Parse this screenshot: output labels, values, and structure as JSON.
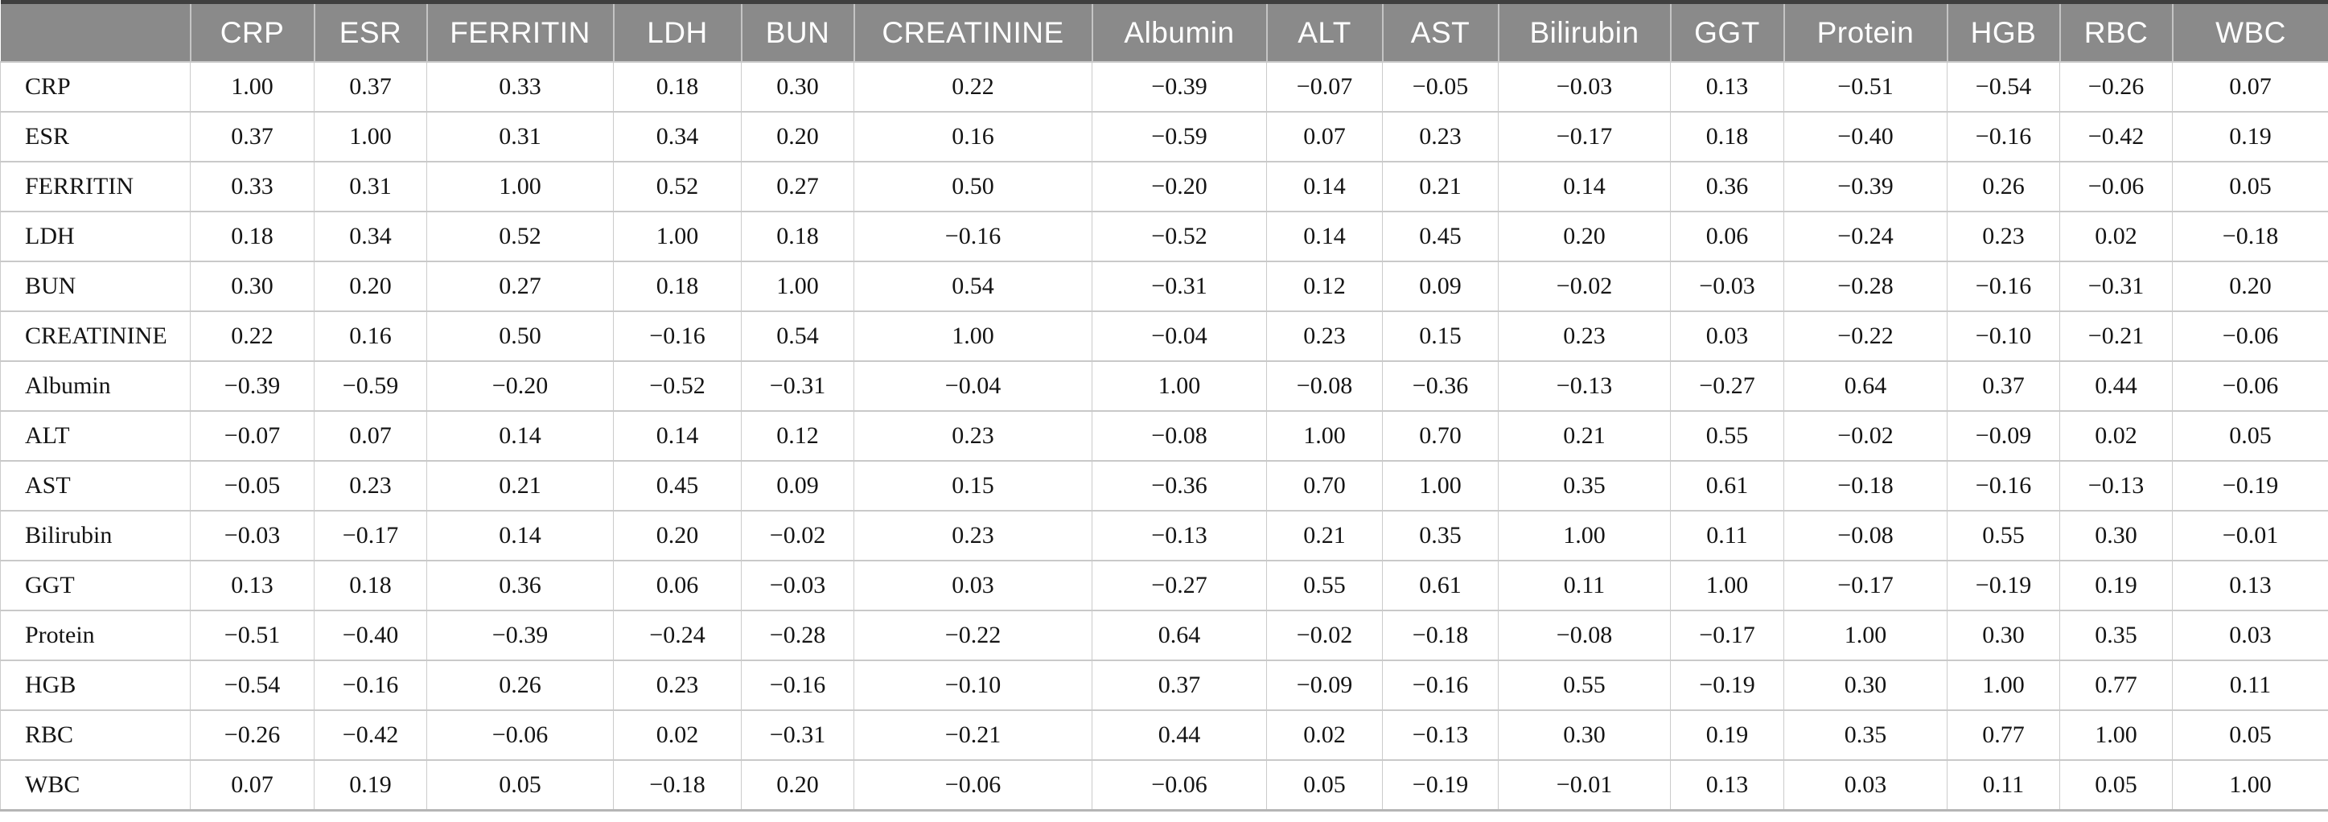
{
  "table": {
    "corner_label": "",
    "columns": [
      "CRP",
      "ESR",
      "FERRITIN",
      "LDH",
      "BUN",
      "CREATININE",
      "Albumin",
      "ALT",
      "AST",
      "Bilirubin",
      "GGT",
      "Protein",
      "HGB",
      "RBC",
      "WBC"
    ],
    "rows": [
      {
        "label": "CRP",
        "values": [
          "1.00",
          "0.37",
          "0.33",
          "0.18",
          "0.30",
          "0.22",
          "−0.39",
          "−0.07",
          "−0.05",
          "−0.03",
          "0.13",
          "−0.51",
          "−0.54",
          "−0.26",
          "0.07"
        ]
      },
      {
        "label": "ESR",
        "values": [
          "0.37",
          "1.00",
          "0.31",
          "0.34",
          "0.20",
          "0.16",
          "−0.59",
          "0.07",
          "0.23",
          "−0.17",
          "0.18",
          "−0.40",
          "−0.16",
          "−0.42",
          "0.19"
        ]
      },
      {
        "label": "FERRITIN",
        "values": [
          "0.33",
          "0.31",
          "1.00",
          "0.52",
          "0.27",
          "0.50",
          "−0.20",
          "0.14",
          "0.21",
          "0.14",
          "0.36",
          "−0.39",
          "0.26",
          "−0.06",
          "0.05"
        ]
      },
      {
        "label": "LDH",
        "values": [
          "0.18",
          "0.34",
          "0.52",
          "1.00",
          "0.18",
          "−0.16",
          "−0.52",
          "0.14",
          "0.45",
          "0.20",
          "0.06",
          "−0.24",
          "0.23",
          "0.02",
          "−0.18"
        ]
      },
      {
        "label": "BUN",
        "values": [
          "0.30",
          "0.20",
          "0.27",
          "0.18",
          "1.00",
          "0.54",
          "−0.31",
          "0.12",
          "0.09",
          "−0.02",
          "−0.03",
          "−0.28",
          "−0.16",
          "−0.31",
          "0.20"
        ]
      },
      {
        "label": "CREATININE",
        "values": [
          "0.22",
          "0.16",
          "0.50",
          "−0.16",
          "0.54",
          "1.00",
          "−0.04",
          "0.23",
          "0.15",
          "0.23",
          "0.03",
          "−0.22",
          "−0.10",
          "−0.21",
          "−0.06"
        ]
      },
      {
        "label": "Albumin",
        "values": [
          "−0.39",
          "−0.59",
          "−0.20",
          "−0.52",
          "−0.31",
          "−0.04",
          "1.00",
          "−0.08",
          "−0.36",
          "−0.13",
          "−0.27",
          "0.64",
          "0.37",
          "0.44",
          "−0.06"
        ]
      },
      {
        "label": "ALT",
        "values": [
          "−0.07",
          "0.07",
          "0.14",
          "0.14",
          "0.12",
          "0.23",
          "−0.08",
          "1.00",
          "0.70",
          "0.21",
          "0.55",
          "−0.02",
          "−0.09",
          "0.02",
          "0.05"
        ]
      },
      {
        "label": "AST",
        "values": [
          "−0.05",
          "0.23",
          "0.21",
          "0.45",
          "0.09",
          "0.15",
          "−0.36",
          "0.70",
          "1.00",
          "0.35",
          "0.61",
          "−0.18",
          "−0.16",
          "−0.13",
          "−0.19"
        ]
      },
      {
        "label": "Bilirubin",
        "values": [
          "−0.03",
          "−0.17",
          "0.14",
          "0.20",
          "−0.02",
          "0.23",
          "−0.13",
          "0.21",
          "0.35",
          "1.00",
          "0.11",
          "−0.08",
          "0.55",
          "0.30",
          "−0.01"
        ]
      },
      {
        "label": "GGT",
        "values": [
          "0.13",
          "0.18",
          "0.36",
          "0.06",
          "−0.03",
          "0.03",
          "−0.27",
          "0.55",
          "0.61",
          "0.11",
          "1.00",
          "−0.17",
          "−0.19",
          "0.19",
          "0.13"
        ]
      },
      {
        "label": "Protein",
        "values": [
          "−0.51",
          "−0.40",
          "−0.39",
          "−0.24",
          "−0.28",
          "−0.22",
          "0.64",
          "−0.02",
          "−0.18",
          "−0.08",
          "−0.17",
          "1.00",
          "0.30",
          "0.35",
          "0.03"
        ]
      },
      {
        "label": "HGB",
        "values": [
          "−0.54",
          "−0.16",
          "0.26",
          "0.23",
          "−0.16",
          "−0.10",
          "0.37",
          "−0.09",
          "−0.16",
          "0.55",
          "−0.19",
          "0.30",
          "1.00",
          "0.77",
          "0.11"
        ]
      },
      {
        "label": "RBC",
        "values": [
          "−0.26",
          "−0.42",
          "−0.06",
          "0.02",
          "−0.31",
          "−0.21",
          "0.44",
          "0.02",
          "−0.13",
          "0.30",
          "0.19",
          "0.35",
          "0.77",
          "1.00",
          "0.05"
        ]
      },
      {
        "label": "WBC",
        "values": [
          "0.07",
          "0.19",
          "0.05",
          "−0.18",
          "0.20",
          "−0.06",
          "−0.06",
          "0.05",
          "−0.19",
          "−0.01",
          "0.13",
          "0.03",
          "0.11",
          "0.05",
          "1.00"
        ]
      }
    ]
  },
  "colors": {
    "header_bg": "#8a8a8a",
    "header_text": "#ffffff",
    "top_rule": "#3f3f3f",
    "grid_line": "#c9c9c9",
    "body_text": "#141414"
  }
}
